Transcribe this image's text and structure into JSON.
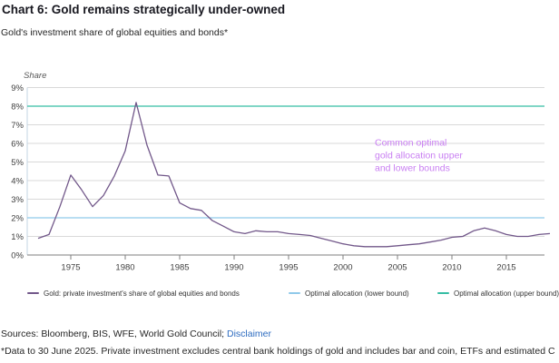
{
  "header": {
    "title": "Chart 6: Gold remains strategically under-owned",
    "subtitle": "Gold's investment share of global equities and bonds*"
  },
  "chart_data": {
    "type": "line",
    "title": "Chart 6: Gold remains strategically under-owned",
    "subtitle": "Gold's investment share of global equities and bonds*",
    "ylabel": "Share",
    "ylim": [
      0,
      9
    ],
    "ytick_labels": [
      "0%",
      "1%",
      "2%",
      "3%",
      "4%",
      "5%",
      "6%",
      "7%",
      "8%",
      "9%"
    ],
    "xticks": [
      1975,
      1980,
      1985,
      1990,
      1995,
      2000,
      2005,
      2010,
      2015
    ],
    "grid": "horizontal",
    "series": [
      {
        "name": "Gold: private investment's share of global equities and bonds",
        "color": "#72588a",
        "x": [
          1972,
          1973,
          1974,
          1975,
          1976,
          1977,
          1978,
          1979,
          1980,
          1981,
          1982,
          1983,
          1984,
          1985,
          1986,
          1987,
          1988,
          1989,
          1990,
          1991,
          1992,
          1993,
          1994,
          1995,
          1996,
          1997,
          1998,
          1999,
          2000,
          2001,
          2002,
          2003,
          2004,
          2005,
          2006,
          2007,
          2008,
          2009,
          2010,
          2011,
          2012,
          2013,
          2014,
          2015,
          2016,
          2017,
          2018,
          2019
        ],
        "values": [
          0.9,
          1.1,
          2.6,
          4.3,
          3.5,
          2.6,
          3.2,
          4.25,
          5.6,
          8.2,
          5.9,
          4.3,
          4.25,
          2.8,
          2.5,
          2.4,
          1.85,
          1.55,
          1.25,
          1.15,
          1.3,
          1.25,
          1.25,
          1.15,
          1.1,
          1.05,
          0.9,
          0.75,
          0.6,
          0.5,
          0.45,
          0.45,
          0.45,
          0.5,
          0.55,
          0.6,
          0.7,
          0.8,
          0.95,
          1.0,
          1.3,
          1.45,
          1.3,
          1.1,
          1.0,
          1.0,
          1.1,
          1.15
        ]
      },
      {
        "name": "Optimal allocation (lower bound)",
        "color": "#8fc9ea",
        "value": 2
      },
      {
        "name": "Optimal allocation (upper bound)",
        "color": "#35bda4",
        "value": 8
      }
    ],
    "annotation": {
      "lines": [
        "Common optimal",
        "gold allocation upper",
        "and lower bounds"
      ],
      "color": "#c97ff2"
    },
    "legend_position": "bottom"
  },
  "legend": [
    {
      "label": "Gold: private investment's share of global equities and bonds",
      "color": "#72588a"
    },
    {
      "label": "Optimal allocation (lower bound)",
      "color": "#8fc9ea"
    },
    {
      "label": "Optimal allocation (upper bound)",
      "color": "#35bda4"
    }
  ],
  "footer": {
    "sources_prefix": "Sources: Bloomberg, BIS, WFE, World Gold Council; ",
    "disclaimer_label": "Disclaimer",
    "footnote": "*Data to 30 June 2025. Private investment excludes central bank holdings of gold and includes bar and coin, ETFs and estimated C"
  }
}
